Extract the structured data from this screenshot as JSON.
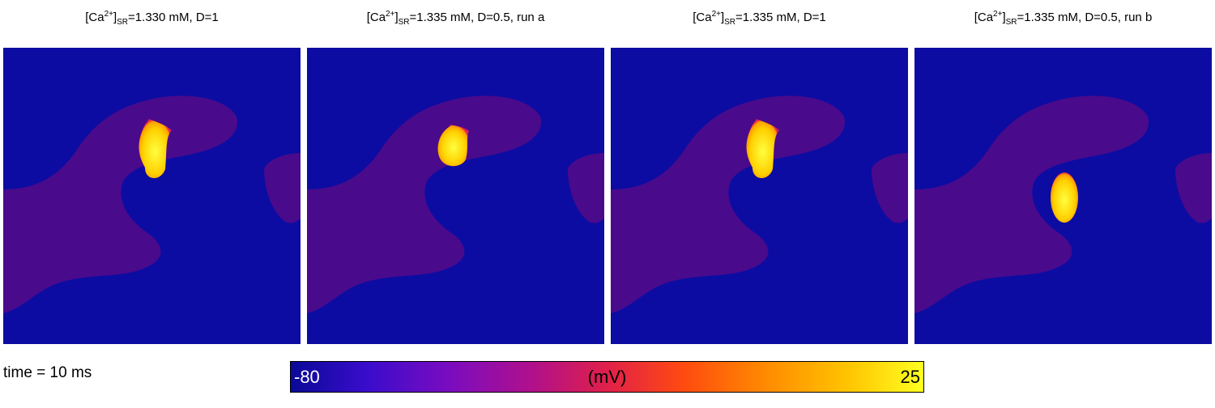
{
  "panels": [
    {
      "ion": "[Ca",
      "charge": "2+",
      "close": "]",
      "compartment": "SR",
      "text": "=1.330 mM, D=1"
    },
    {
      "ion": "[Ca",
      "charge": "2+",
      "close": "]",
      "compartment": "SR",
      "text": "=1.335 mM, D=0.5, run a"
    },
    {
      "ion": "[Ca",
      "charge": "2+",
      "close": "]",
      "compartment": "SR",
      "text": "=1.335 mM, D=1"
    },
    {
      "ion": "[Ca",
      "charge": "2+",
      "close": "]",
      "compartment": "SR",
      "text": "=1.335 mM, D=0.5, run b"
    }
  ],
  "time_label": "time =  10 ms",
  "colorbar": {
    "min": "-80",
    "unit": "(mV)",
    "max": "25"
  }
}
